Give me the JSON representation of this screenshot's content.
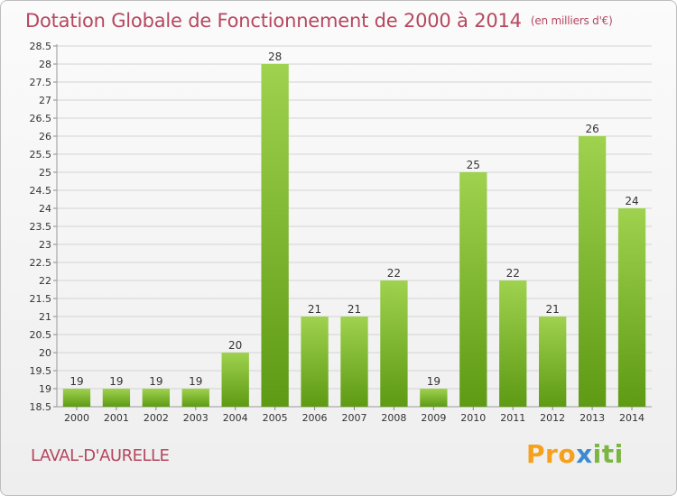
{
  "title": "Dotation Globale de Fonctionnement de 2000 à 2014",
  "unit": "(en milliers d'€)",
  "commune": "LAVAL-D'AURELLE",
  "brand": {
    "parts": [
      "Pro",
      "x",
      "iti"
    ]
  },
  "colors": {
    "accent": "#b5475f",
    "bar_top": "#9fd24e",
    "bar_bottom": "#5e9a14",
    "grid": "#d4d4d4"
  },
  "chart_data": {
    "type": "bar",
    "categories": [
      "2000",
      "2001",
      "2002",
      "2003",
      "2004",
      "2005",
      "2006",
      "2007",
      "2008",
      "2009",
      "2010",
      "2011",
      "2012",
      "2013",
      "2014"
    ],
    "values": [
      19,
      19,
      19,
      19,
      20,
      28,
      21,
      21,
      22,
      19,
      25,
      22,
      21,
      26,
      24
    ],
    "labels": [
      "19",
      "19",
      "19",
      "19",
      "20",
      "28",
      "21",
      "21",
      "22",
      "19",
      "25",
      "22",
      "21",
      "26",
      "24"
    ],
    "yticks": [
      "18.5",
      "19",
      "19.5",
      "20",
      "20.5",
      "21",
      "21.5",
      "22",
      "22.5",
      "23",
      "23.5",
      "24",
      "24.5",
      "25",
      "25.5",
      "26",
      "26.5",
      "27",
      "27.5",
      "28",
      "28.5"
    ],
    "ylim": [
      18.5,
      28.5
    ],
    "grid": true
  }
}
